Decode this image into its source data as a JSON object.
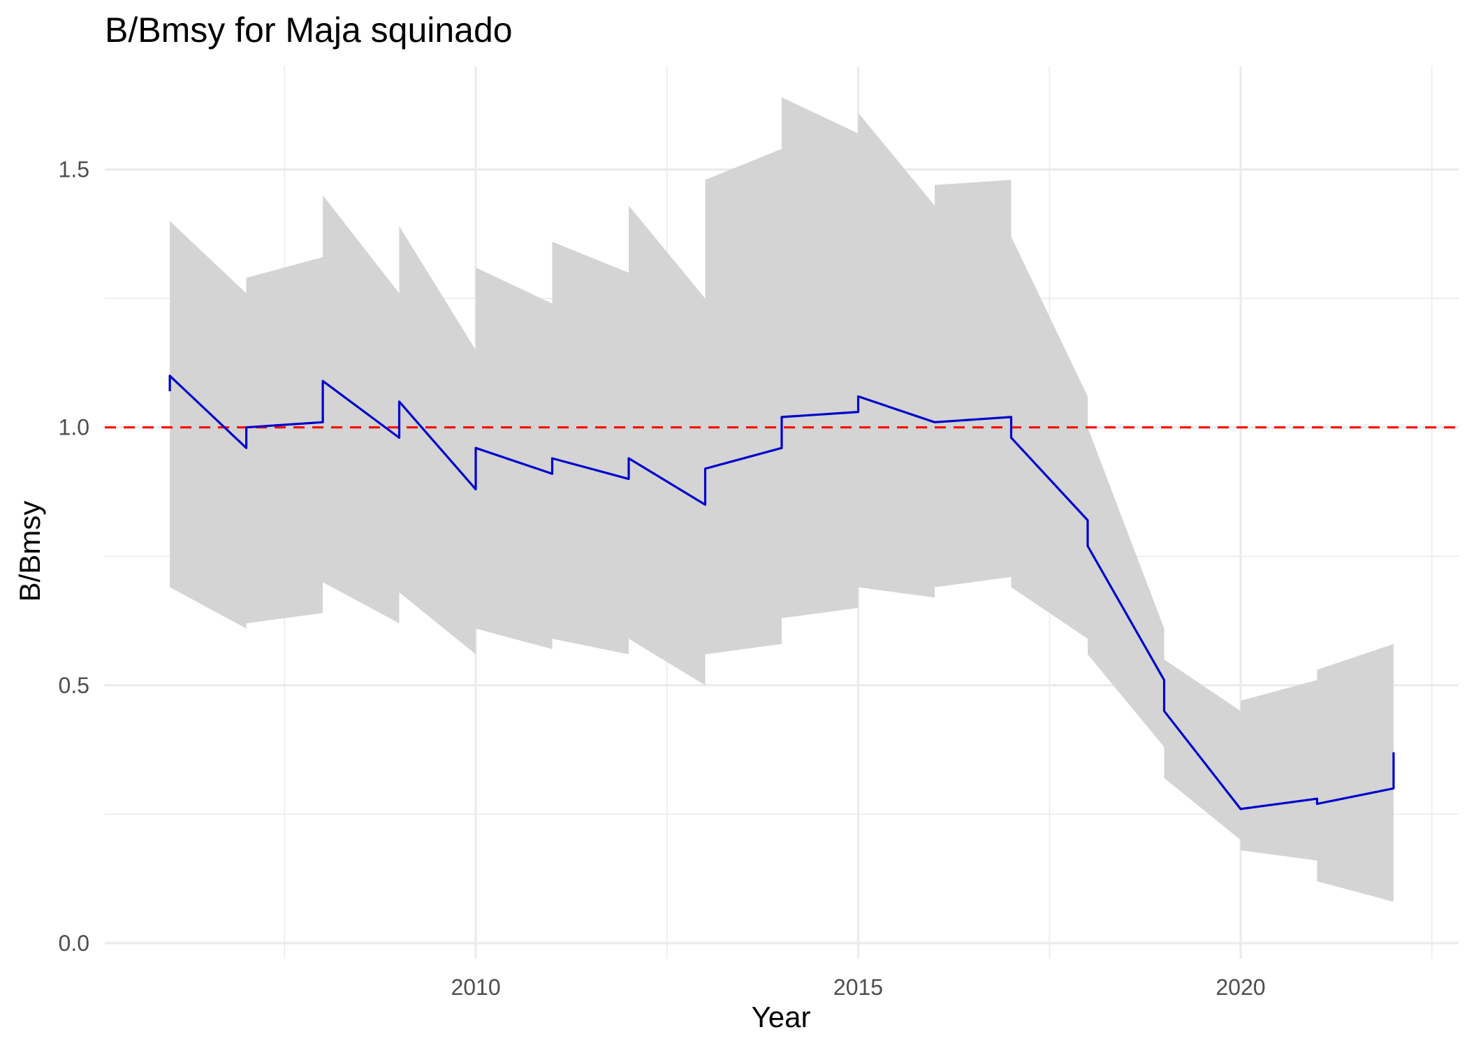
{
  "chart_data": {
    "type": "line",
    "title": "B/Bmsy for Maja squinado",
    "xlabel": "Year",
    "ylabel": "B/Bmsy",
    "xlim": [
      2005.15,
      2022.85
    ],
    "ylim": [
      -0.03,
      1.7
    ],
    "x_ticks": [
      2010,
      2015,
      2020
    ],
    "x_tick_labels": [
      "2010",
      "2015",
      "2020"
    ],
    "x_minor_ticks": [
      2007.5,
      2012.5,
      2017.5,
      2022.5
    ],
    "y_ticks": [
      0.0,
      0.5,
      1.0,
      1.5
    ],
    "y_tick_labels": [
      "0.0",
      "0.5",
      "1.0",
      "1.5"
    ],
    "y_minor_ticks": [
      0.25,
      0.75,
      1.25
    ],
    "grid": true,
    "reference_line": {
      "y": 1.0,
      "color": "#ff0000",
      "style": "dashed"
    },
    "colors": {
      "line": "#0000cd",
      "ribbon": "#d4d4d4",
      "grid": "#ebebeb"
    },
    "series": [
      {
        "points": [
          [
            2006,
            1.07,
            0.69,
            1.4
          ],
          [
            2006,
            1.1,
            0.69,
            1.4
          ],
          [
            2007,
            0.96,
            0.61,
            1.26
          ],
          [
            2007,
            1.0,
            0.62,
            1.29
          ],
          [
            2008,
            1.01,
            0.64,
            1.33
          ],
          [
            2008,
            1.09,
            0.7,
            1.45
          ],
          [
            2009,
            0.98,
            0.62,
            1.26
          ],
          [
            2009,
            1.05,
            0.68,
            1.39
          ],
          [
            2010,
            0.88,
            0.56,
            1.15
          ],
          [
            2010,
            0.96,
            0.61,
            1.31
          ],
          [
            2011,
            0.91,
            0.57,
            1.24
          ],
          [
            2011,
            0.94,
            0.59,
            1.36
          ],
          [
            2012,
            0.9,
            0.56,
            1.3
          ],
          [
            2012,
            0.94,
            0.59,
            1.43
          ],
          [
            2013,
            0.85,
            0.5,
            1.25
          ],
          [
            2013,
            0.92,
            0.56,
            1.48
          ],
          [
            2014,
            0.96,
            0.58,
            1.54
          ],
          [
            2014,
            1.02,
            0.63,
            1.64
          ],
          [
            2015,
            1.03,
            0.65,
            1.57
          ],
          [
            2015,
            1.06,
            0.69,
            1.61
          ],
          [
            2016,
            1.01,
            0.67,
            1.43
          ],
          [
            2016,
            1.01,
            0.69,
            1.47
          ],
          [
            2017,
            1.02,
            0.71,
            1.48
          ],
          [
            2017,
            0.98,
            0.69,
            1.37
          ],
          [
            2018,
            0.82,
            0.59,
            1.06
          ],
          [
            2018,
            0.77,
            0.56,
            1.0
          ],
          [
            2019,
            0.51,
            0.38,
            0.61
          ],
          [
            2019,
            0.45,
            0.32,
            0.55
          ],
          [
            2020,
            0.26,
            0.2,
            0.45
          ],
          [
            2020,
            0.26,
            0.18,
            0.47
          ],
          [
            2021,
            0.28,
            0.16,
            0.51
          ],
          [
            2021,
            0.27,
            0.12,
            0.53
          ],
          [
            2022,
            0.3,
            0.08,
            0.58
          ],
          [
            2022,
            0.37,
            0.08,
            0.58
          ]
        ]
      }
    ]
  }
}
